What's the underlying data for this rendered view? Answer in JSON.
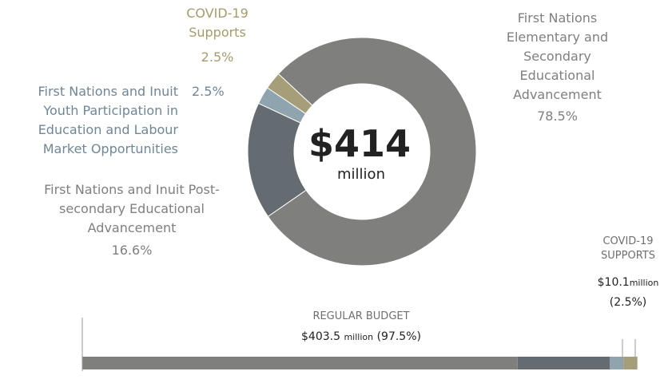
{
  "chart_data": [
    {
      "type": "pie",
      "categories": [
        "First Nations Elementary and Secondary Educational Advancement",
        "First Nations and Inuit Post-secondary Educational Advancement",
        "First Nations and Inuit Youth Participation in Education and Labour Market Opportunities",
        "COVID-19 Supports"
      ],
      "values": [
        78.5,
        16.6,
        2.5,
        2.5
      ],
      "value_labels": [
        "78.5%",
        "16.6%",
        "2.5%",
        "2.5%"
      ],
      "colors": [
        "#7f807e",
        "#656c71",
        "#8fa4af",
        "#a59e78"
      ],
      "center": {
        "amount": "$414",
        "unit": "million"
      }
    },
    {
      "type": "bar",
      "orientation": "horizontal",
      "stacked": true,
      "values": [
        78.5,
        16.6,
        2.5,
        2.5
      ],
      "colors": [
        "#7f807e",
        "#656c71",
        "#8fa4af",
        "#a59e78"
      ],
      "xlim": [
        0,
        100
      ],
      "annotations": [
        {
          "label": "REGULAR BUDGET",
          "amount": "$403.5",
          "unit": "million",
          "share": "(97.5%)"
        },
        {
          "label": "COVID-19 SUPPORTS",
          "amount": "$10.1",
          "unit": "million",
          "share": "(2.5%)"
        }
      ]
    }
  ]
}
